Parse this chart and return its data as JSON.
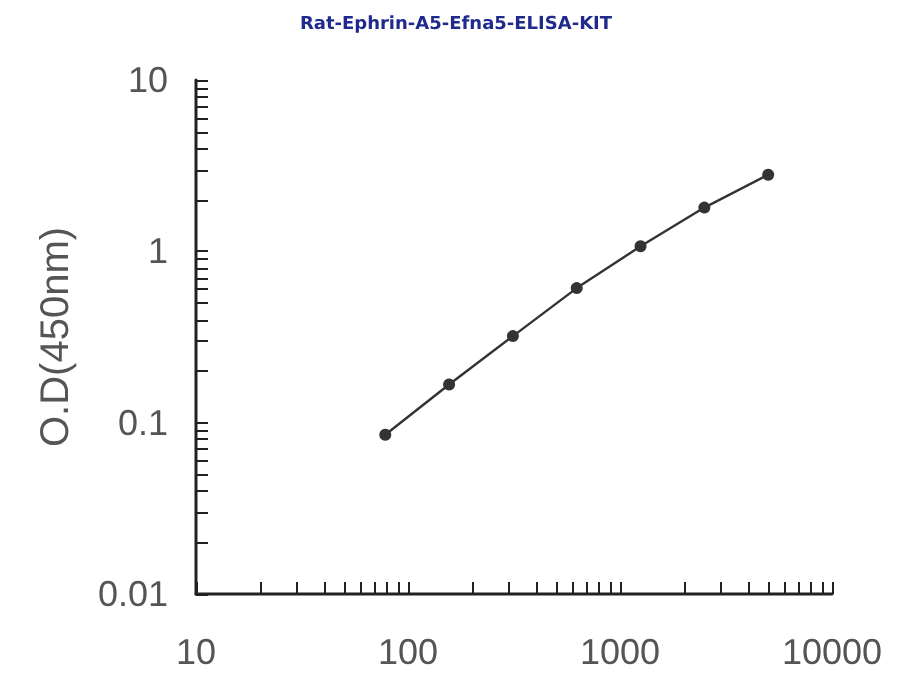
{
  "chart_data": {
    "type": "line",
    "title": "Rat-Ephrin-A5-Efna5-ELISA-KIT",
    "ylabel": "O.D(450nm)",
    "log": "xy",
    "grid": false,
    "marker": "circle",
    "line_style": "solid",
    "x": [
      78.125,
      156.25,
      312.5,
      625,
      1250,
      2500,
      5000
    ],
    "series": [
      {
        "color": "#333333",
        "values": [
          0.085,
          0.167,
          0.32,
          0.61,
          1.07,
          1.8,
          2.8
        ]
      }
    ],
    "xlim": [
      10,
      10000
    ],
    "xticks": [
      10,
      {
        "value": 20,
        "label": null
      },
      {
        "value": 30,
        "label": null
      },
      {
        "value": 40,
        "label": null
      },
      {
        "value": 50,
        "label": null
      },
      {
        "value": 60,
        "label": null
      },
      {
        "value": 70,
        "label": null
      },
      {
        "value": 80,
        "label": null
      },
      {
        "value": 90,
        "label": null
      },
      100,
      {
        "value": 200,
        "label": null
      },
      {
        "value": 300,
        "label": null
      },
      {
        "value": 400,
        "label": null
      },
      {
        "value": 500,
        "label": null
      },
      {
        "value": 600,
        "label": null
      },
      {
        "value": 700,
        "label": null
      },
      {
        "value": 800,
        "label": null
      },
      {
        "value": 900,
        "label": null
      },
      1000,
      {
        "value": 2000,
        "label": null
      },
      {
        "value": 3000,
        "label": null
      },
      {
        "value": 4000,
        "label": null
      },
      {
        "value": 5000,
        "label": null
      },
      {
        "value": 6000,
        "label": null
      },
      {
        "value": 7000,
        "label": null
      },
      {
        "value": 8000,
        "label": null
      },
      {
        "value": 9000,
        "label": null
      },
      10000
    ],
    "ylim": [
      0.01,
      10
    ],
    "yticks": [
      0.01,
      {
        "value": 0.02,
        "label": null
      },
      {
        "value": 0.03,
        "label": null
      },
      {
        "value": 0.04,
        "label": null
      },
      {
        "value": 0.05,
        "label": null
      },
      {
        "value": 0.06,
        "label": null
      },
      {
        "value": 0.07,
        "label": null
      },
      {
        "value": 0.08,
        "label": null
      },
      {
        "value": 0.09,
        "label": null
      },
      0.1,
      {
        "value": 0.2,
        "label": null
      },
      {
        "value": 0.3,
        "label": null
      },
      {
        "value": 0.4,
        "label": null
      },
      {
        "value": 0.5,
        "label": null
      },
      {
        "value": 0.6,
        "label": null
      },
      {
        "value": 0.7,
        "label": null
      },
      {
        "value": 0.8,
        "label": null
      },
      {
        "value": 0.9,
        "label": null
      },
      1,
      {
        "value": 2,
        "label": null
      },
      {
        "value": 3,
        "label": null
      },
      {
        "value": 4,
        "label": null
      },
      {
        "value": 5,
        "label": null
      },
      {
        "value": 6,
        "label": null
      },
      {
        "value": 7,
        "label": null
      },
      {
        "value": 8,
        "label": null
      },
      {
        "value": 9,
        "label": null
      },
      10
    ]
  }
}
